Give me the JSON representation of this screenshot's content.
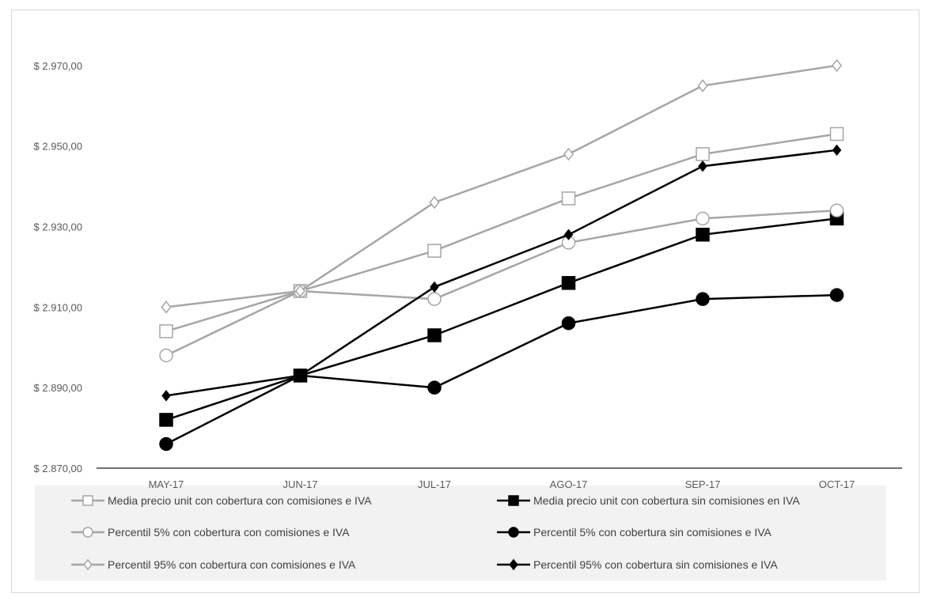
{
  "chart_data": {
    "type": "line",
    "title": "",
    "xlabel": "",
    "ylabel": "",
    "categories": [
      "MAY-17",
      "JUN-17",
      "JUL-17",
      "AGO-17",
      "SEP-17",
      "OCT-17"
    ],
    "ylim": [
      2870,
      2980
    ],
    "yticks": [
      2870,
      2890,
      2910,
      2930,
      2950,
      2970
    ],
    "ytick_labels": [
      "$ 2.870,00",
      "$ 2.890,00",
      "$ 2.910,00",
      "$ 2.930,00",
      "$ 2.950,00",
      "$ 2.970,00"
    ],
    "grid": false,
    "legend_position": "bottom",
    "series": [
      {
        "name": "Media precio unit con cobertura con comisiones e IVA",
        "values": [
          2904,
          2914,
          2924,
          2937,
          2948,
          2953
        ],
        "color": "#a6a6a6",
        "marker": "square",
        "fill": "#ffffff"
      },
      {
        "name": "Media precio unit con cobertura sin comisiones en IVA",
        "values": [
          2882,
          2893,
          2903,
          2916,
          2928,
          2932
        ],
        "color": "#000000",
        "marker": "square",
        "fill": "#000000"
      },
      {
        "name": "Percentil 5% con cobertura con comisiones e IVA",
        "values": [
          2898,
          2914,
          2912,
          2926,
          2932,
          2934
        ],
        "color": "#a6a6a6",
        "marker": "circle",
        "fill": "#ffffff"
      },
      {
        "name": "Percentil 5% con cobertura sin comisiones e IVA",
        "values": [
          2876,
          2893,
          2890,
          2906,
          2912,
          2913
        ],
        "color": "#000000",
        "marker": "circle",
        "fill": "#000000"
      },
      {
        "name": "Percentil 95% con cobertura con comisiones e IVA",
        "values": [
          2910,
          2914,
          2936,
          2948,
          2965,
          2970
        ],
        "color": "#a6a6a6",
        "marker": "diamond",
        "fill": "#ffffff"
      },
      {
        "name": "Percentil 95% con cobertura sin comisiones e IVA",
        "values": [
          2888,
          2893,
          2915,
          2928,
          2945,
          2949
        ],
        "color": "#000000",
        "marker": "diamond",
        "fill": "#000000"
      }
    ]
  }
}
